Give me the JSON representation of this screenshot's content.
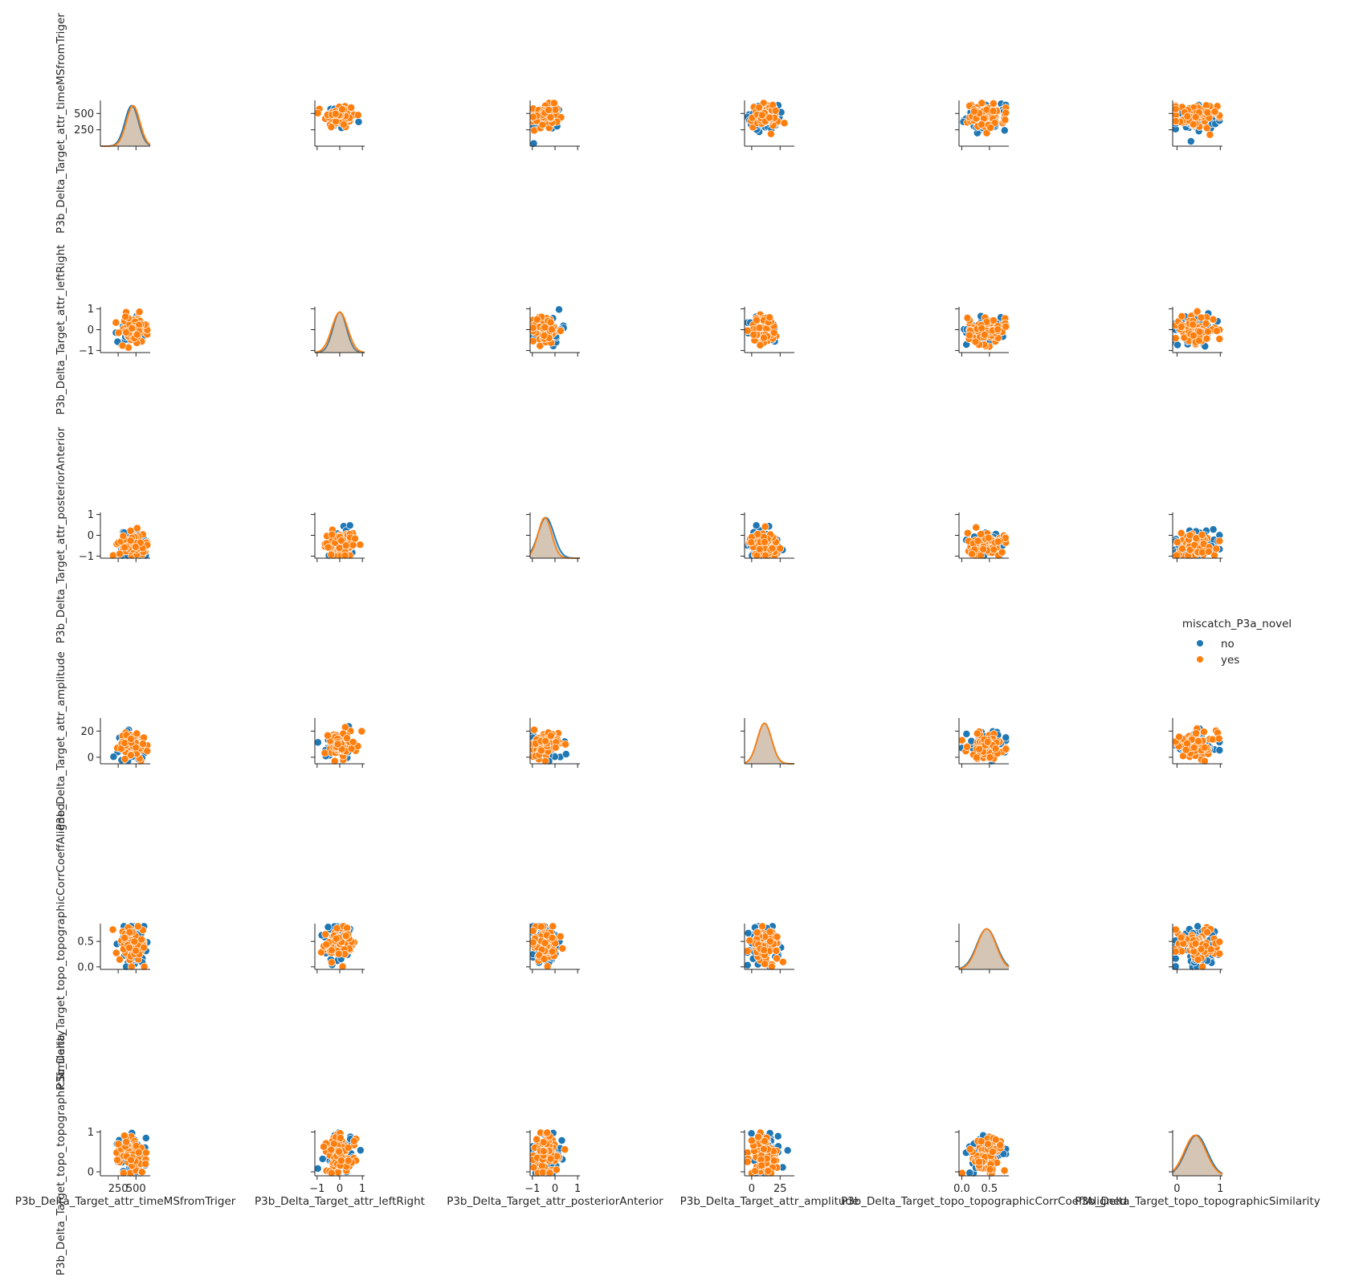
{
  "chart_data": {
    "type": "scatter",
    "subtype": "pairplot",
    "variables": [
      "P3b_Delta_Target_attr_timeMSfromTriger",
      "P3b_Delta_Target_attr_leftRight",
      "P3b_Delta_Target_attr_posteriorAnterior",
      "P3b_Delta_Target_attr_amplitude",
      "P3b_Delta_Target_topo_topographicCorrCoeffAligned",
      "P3b_Delta_Target_topo_topographicSimilarity"
    ],
    "y_axis_labels": [
      "P3b_Delta_Target_attr_timeMSfromTriger",
      "P3b_Delta_Target_attr_leftRight",
      "P3b_Delta_Target_attr_posteriorAnterior",
      "P3b_Delta_Target_attr_amplitude",
      "P3b_Delta_Target_topo_topographicCorrCoeffAligned",
      "P3b_Delta_Target_topo_topographicSimilarity"
    ],
    "ranges": [
      {
        "min": 0,
        "max": 700,
        "ticks": [
          250,
          500
        ],
        "tick_labels": [
          "250",
          "500"
        ]
      },
      {
        "min": -1.1,
        "max": 1.1,
        "ticks": [
          -1,
          0,
          1
        ],
        "tick_labels": [
          "−1",
          "0",
          "1"
        ]
      },
      {
        "min": -1.1,
        "max": 1.1,
        "ticks": [
          -1,
          0,
          1
        ],
        "tick_labels": [
          "−1",
          "0",
          "1"
        ]
      },
      {
        "min": -5,
        "max": 30,
        "ticks": [
          0,
          20
        ],
        "tick_labels": [
          "0",
          "20"
        ]
      },
      {
        "min": -0.05,
        "max": 0.85,
        "ticks": [
          0.0,
          0.5
        ],
        "tick_labels": [
          "0.0",
          "0.5"
        ]
      },
      {
        "min": -0.1,
        "max": 1.05,
        "ticks": [
          0,
          1
        ],
        "tick_labels": [
          "0",
          "1"
        ]
      }
    ],
    "x_tick_labels": [
      [
        "250",
        "500"
      ],
      [
        "−1",
        "0",
        "1"
      ],
      [
        "−1",
        "0",
        "1"
      ],
      [
        "0",
        "25"
      ],
      [
        "0.0",
        "0.5"
      ],
      [
        "0",
        "1"
      ]
    ],
    "hue": {
      "title": "miscatch_P3a_novel",
      "levels": [
        {
          "label": "no",
          "color": "#1f77b4"
        },
        {
          "label": "yes",
          "color": "#ff7f0e"
        }
      ]
    },
    "distributions": [
      {
        "variable": "P3b_Delta_Target_attr_timeMSfromTriger",
        "no": {
          "mean": 440,
          "sd": 95
        },
        "yes": {
          "mean": 460,
          "sd": 95
        }
      },
      {
        "variable": "P3b_Delta_Target_attr_leftRight",
        "no": {
          "mean": 0.0,
          "sd": 0.3
        },
        "yes": {
          "mean": 0.0,
          "sd": 0.35
        }
      },
      {
        "variable": "P3b_Delta_Target_attr_posteriorAnterior",
        "no": {
          "mean": -0.4,
          "sd": 0.35
        },
        "yes": {
          "mean": -0.45,
          "sd": 0.3
        }
      },
      {
        "variable": "P3b_Delta_Target_attr_amplitude",
        "no": {
          "mean": 9,
          "sd": 5
        },
        "yes": {
          "mean": 9,
          "sd": 5
        }
      },
      {
        "variable": "P3b_Delta_Target_topo_topographicCorrCoeffAligned",
        "no": {
          "mean": 0.45,
          "sd": 0.18
        },
        "yes": {
          "mean": 0.45,
          "sd": 0.17
        }
      },
      {
        "variable": "P3b_Delta_Target_topo_topographicSimilarity",
        "no": {
          "mean": 0.45,
          "sd": 0.25
        },
        "yes": {
          "mean": 0.42,
          "sd": 0.25
        }
      }
    ],
    "grid": false,
    "legend_position": "right"
  },
  "colors": {
    "no": "#1f77b4",
    "yes": "#ff7f0e",
    "kde_fill": "#c8b7a6",
    "axis": "#262626"
  }
}
